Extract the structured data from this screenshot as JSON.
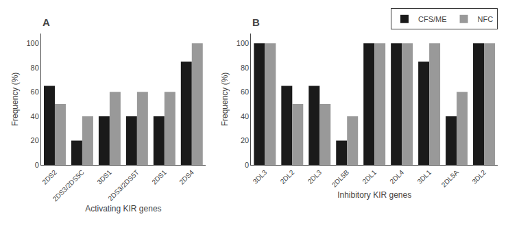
{
  "chart_data": [
    {
      "type": "bar",
      "annotations": [
        "A"
      ],
      "categories": [
        "2DS2",
        "2DS3/2DS5C",
        "3DS1",
        "2DS3/2DS5T",
        "2DS1",
        "2DS4"
      ],
      "series": [
        {
          "name": "CFS/ME",
          "color": "#1a1a1a",
          "values": [
            65,
            20,
            40,
            40,
            40,
            85
          ]
        },
        {
          "name": "NFC",
          "color": "#999999",
          "values": [
            50,
            40,
            60,
            60,
            60,
            100
          ]
        }
      ],
      "xlabel": "Activating KIR genes",
      "ylabel": "Frequency (%)",
      "ylim": [
        0,
        108
      ],
      "yticks": [
        0,
        20,
        40,
        60,
        80,
        100
      ],
      "grid": false
    },
    {
      "type": "bar",
      "annotations": [
        "B"
      ],
      "categories": [
        "3DL3",
        "2DL2",
        "2DL3",
        "2DL5B",
        "2DL1",
        "2DL4",
        "3DL1",
        "2DL5A",
        "3DL2"
      ],
      "series": [
        {
          "name": "CFS/ME",
          "color": "#1a1a1a",
          "values": [
            100,
            65,
            65,
            20,
            100,
            100,
            85,
            40,
            100
          ]
        },
        {
          "name": "NFC",
          "color": "#999999",
          "values": [
            100,
            50,
            50,
            40,
            100,
            100,
            100,
            60,
            100
          ]
        }
      ],
      "xlabel": "Inhibitory KIR genes",
      "ylabel": "Frequency (%)",
      "ylim": [
        0,
        108
      ],
      "yticks": [
        0,
        20,
        40,
        60,
        80,
        100
      ],
      "grid": false,
      "legend": "upper right"
    }
  ]
}
